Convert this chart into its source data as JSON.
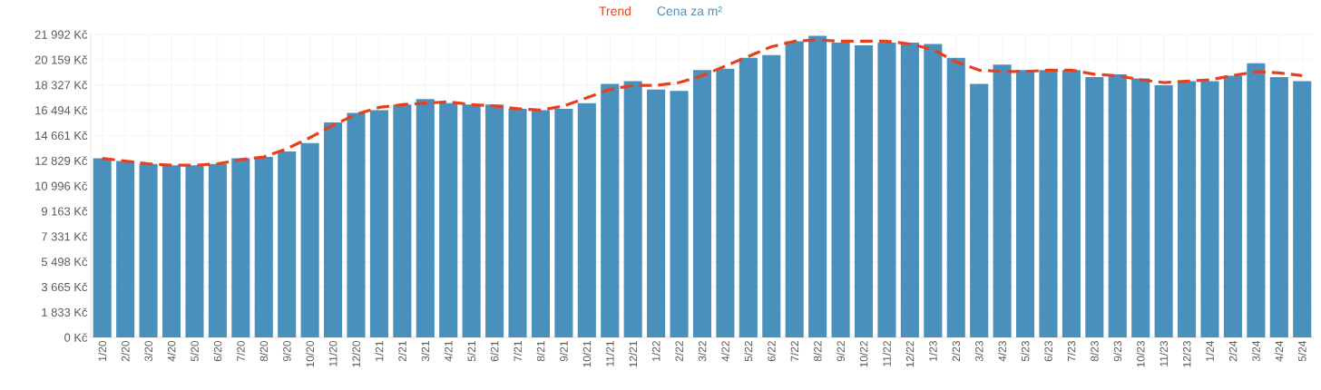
{
  "chart_data": {
    "type": "bar",
    "categories": [
      "1/20",
      "2/20",
      "3/20",
      "4/20",
      "5/20",
      "6/20",
      "7/20",
      "8/20",
      "9/20",
      "10/20",
      "11/20",
      "12/20",
      "1/21",
      "2/21",
      "3/21",
      "4/21",
      "5/21",
      "6/21",
      "7/21",
      "8/21",
      "9/21",
      "10/21",
      "11/21",
      "12/21",
      "1/22",
      "2/22",
      "3/22",
      "4/22",
      "5/22",
      "6/22",
      "7/22",
      "8/22",
      "9/22",
      "10/22",
      "11/22",
      "12/22",
      "1/23",
      "2/23",
      "3/23",
      "4/23",
      "5/23",
      "6/23",
      "7/23",
      "8/23",
      "9/23",
      "10/23",
      "11/23",
      "12/23",
      "1/24",
      "2/24",
      "3/24",
      "4/24",
      "5/24"
    ],
    "series": [
      {
        "name": "Trend",
        "type": "line",
        "color": "#e8401c",
        "values": [
          13000,
          12800,
          12600,
          12500,
          12500,
          12600,
          12900,
          13100,
          13700,
          14500,
          15400,
          16200,
          16700,
          16900,
          17000,
          17100,
          16900,
          16800,
          16600,
          16500,
          16800,
          17400,
          18000,
          18300,
          18300,
          18500,
          19000,
          19700,
          20400,
          21100,
          21500,
          21600,
          21500,
          21500,
          21500,
          21300,
          20900,
          20000,
          19400,
          19300,
          19300,
          19400,
          19400,
          19100,
          19000,
          18700,
          18500,
          18600,
          18700,
          19000,
          19300,
          19200,
          19000
        ]
      },
      {
        "name": "Cena za m²",
        "color": "#4a90bd",
        "values": [
          13000,
          12800,
          12600,
          12500,
          12500,
          12600,
          13000,
          13100,
          13500,
          14100,
          15600,
          16300,
          16500,
          16900,
          17300,
          17000,
          16900,
          16900,
          16600,
          16500,
          16600,
          17000,
          18400,
          18600,
          18000,
          17900,
          19400,
          19500,
          20300,
          20500,
          21500,
          21900,
          21400,
          21200,
          21400,
          21400,
          21300,
          20300,
          18400,
          19800,
          19400,
          19400,
          19400,
          18900,
          19100,
          18800,
          18300,
          18600,
          18600,
          19000,
          19900,
          18900,
          18600
        ]
      }
    ],
    "ylim": [
      0,
      21992
    ],
    "yticks": [
      {
        "value": 0,
        "label": "0 Kč"
      },
      {
        "value": 1833,
        "label": "1 833 Kč"
      },
      {
        "value": 3665,
        "label": "3 665 Kč"
      },
      {
        "value": 5498,
        "label": "5 498 Kč"
      },
      {
        "value": 7331,
        "label": "7 331 Kč"
      },
      {
        "value": 9163,
        "label": "9 163 Kč"
      },
      {
        "value": 10996,
        "label": "10 996 Kč"
      },
      {
        "value": 12829,
        "label": "12 829 Kč"
      },
      {
        "value": 14661,
        "label": "14 661 Kč"
      },
      {
        "value": 16494,
        "label": "16 494 Kč"
      },
      {
        "value": 18327,
        "label": "18 327 Kč"
      },
      {
        "value": 20159,
        "label": "20 159 Kč"
      },
      {
        "value": 21992,
        "label": "21 992 Kč"
      }
    ],
    "grid": true,
    "legend": "top",
    "marker": "none",
    "line_style": "dashed"
  }
}
